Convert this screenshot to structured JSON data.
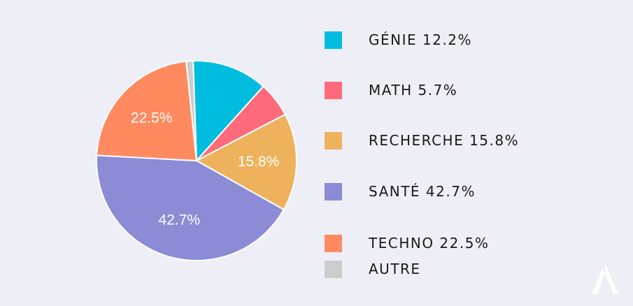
{
  "chart_data": {
    "type": "pie",
    "slices": [
      {
        "label": "GÉNIE",
        "value": 12.2,
        "color": "#00bde0",
        "data_label": ""
      },
      {
        "label": "MATH",
        "value": 5.7,
        "color": "#ff6b7a",
        "data_label": ""
      },
      {
        "label": "RECHERCHE",
        "value": 15.8,
        "color": "#eeb25c",
        "data_label": "15.8%"
      },
      {
        "label": "SANTÉ",
        "value": 42.7,
        "color": "#8b8bd6",
        "data_label": "42.7%"
      },
      {
        "label": "TECHNO",
        "value": 22.5,
        "color": "#ff8a60",
        "data_label": "22.5%"
      },
      {
        "label": "AUTRE",
        "value": 1.1,
        "color": "#cccccc",
        "data_label": ""
      }
    ],
    "legend_placement": "right"
  },
  "legend": [
    {
      "text": "GÉNIE 12.2%",
      "color": "#00bde0"
    },
    {
      "text": "MATH 5.7%",
      "color": "#ff6b7a"
    },
    {
      "text": "RECHERCHE 15.8%",
      "color": "#eeb25c"
    },
    {
      "text": "SANTÉ 42.7%",
      "color": "#8b8bd6"
    },
    {
      "text": "TECHNO 22.5%",
      "color": "#ff8a60"
    },
    {
      "text": "AUTRE",
      "color": "#cccccc"
    }
  ],
  "logo_icon": "brand-logo-icon"
}
